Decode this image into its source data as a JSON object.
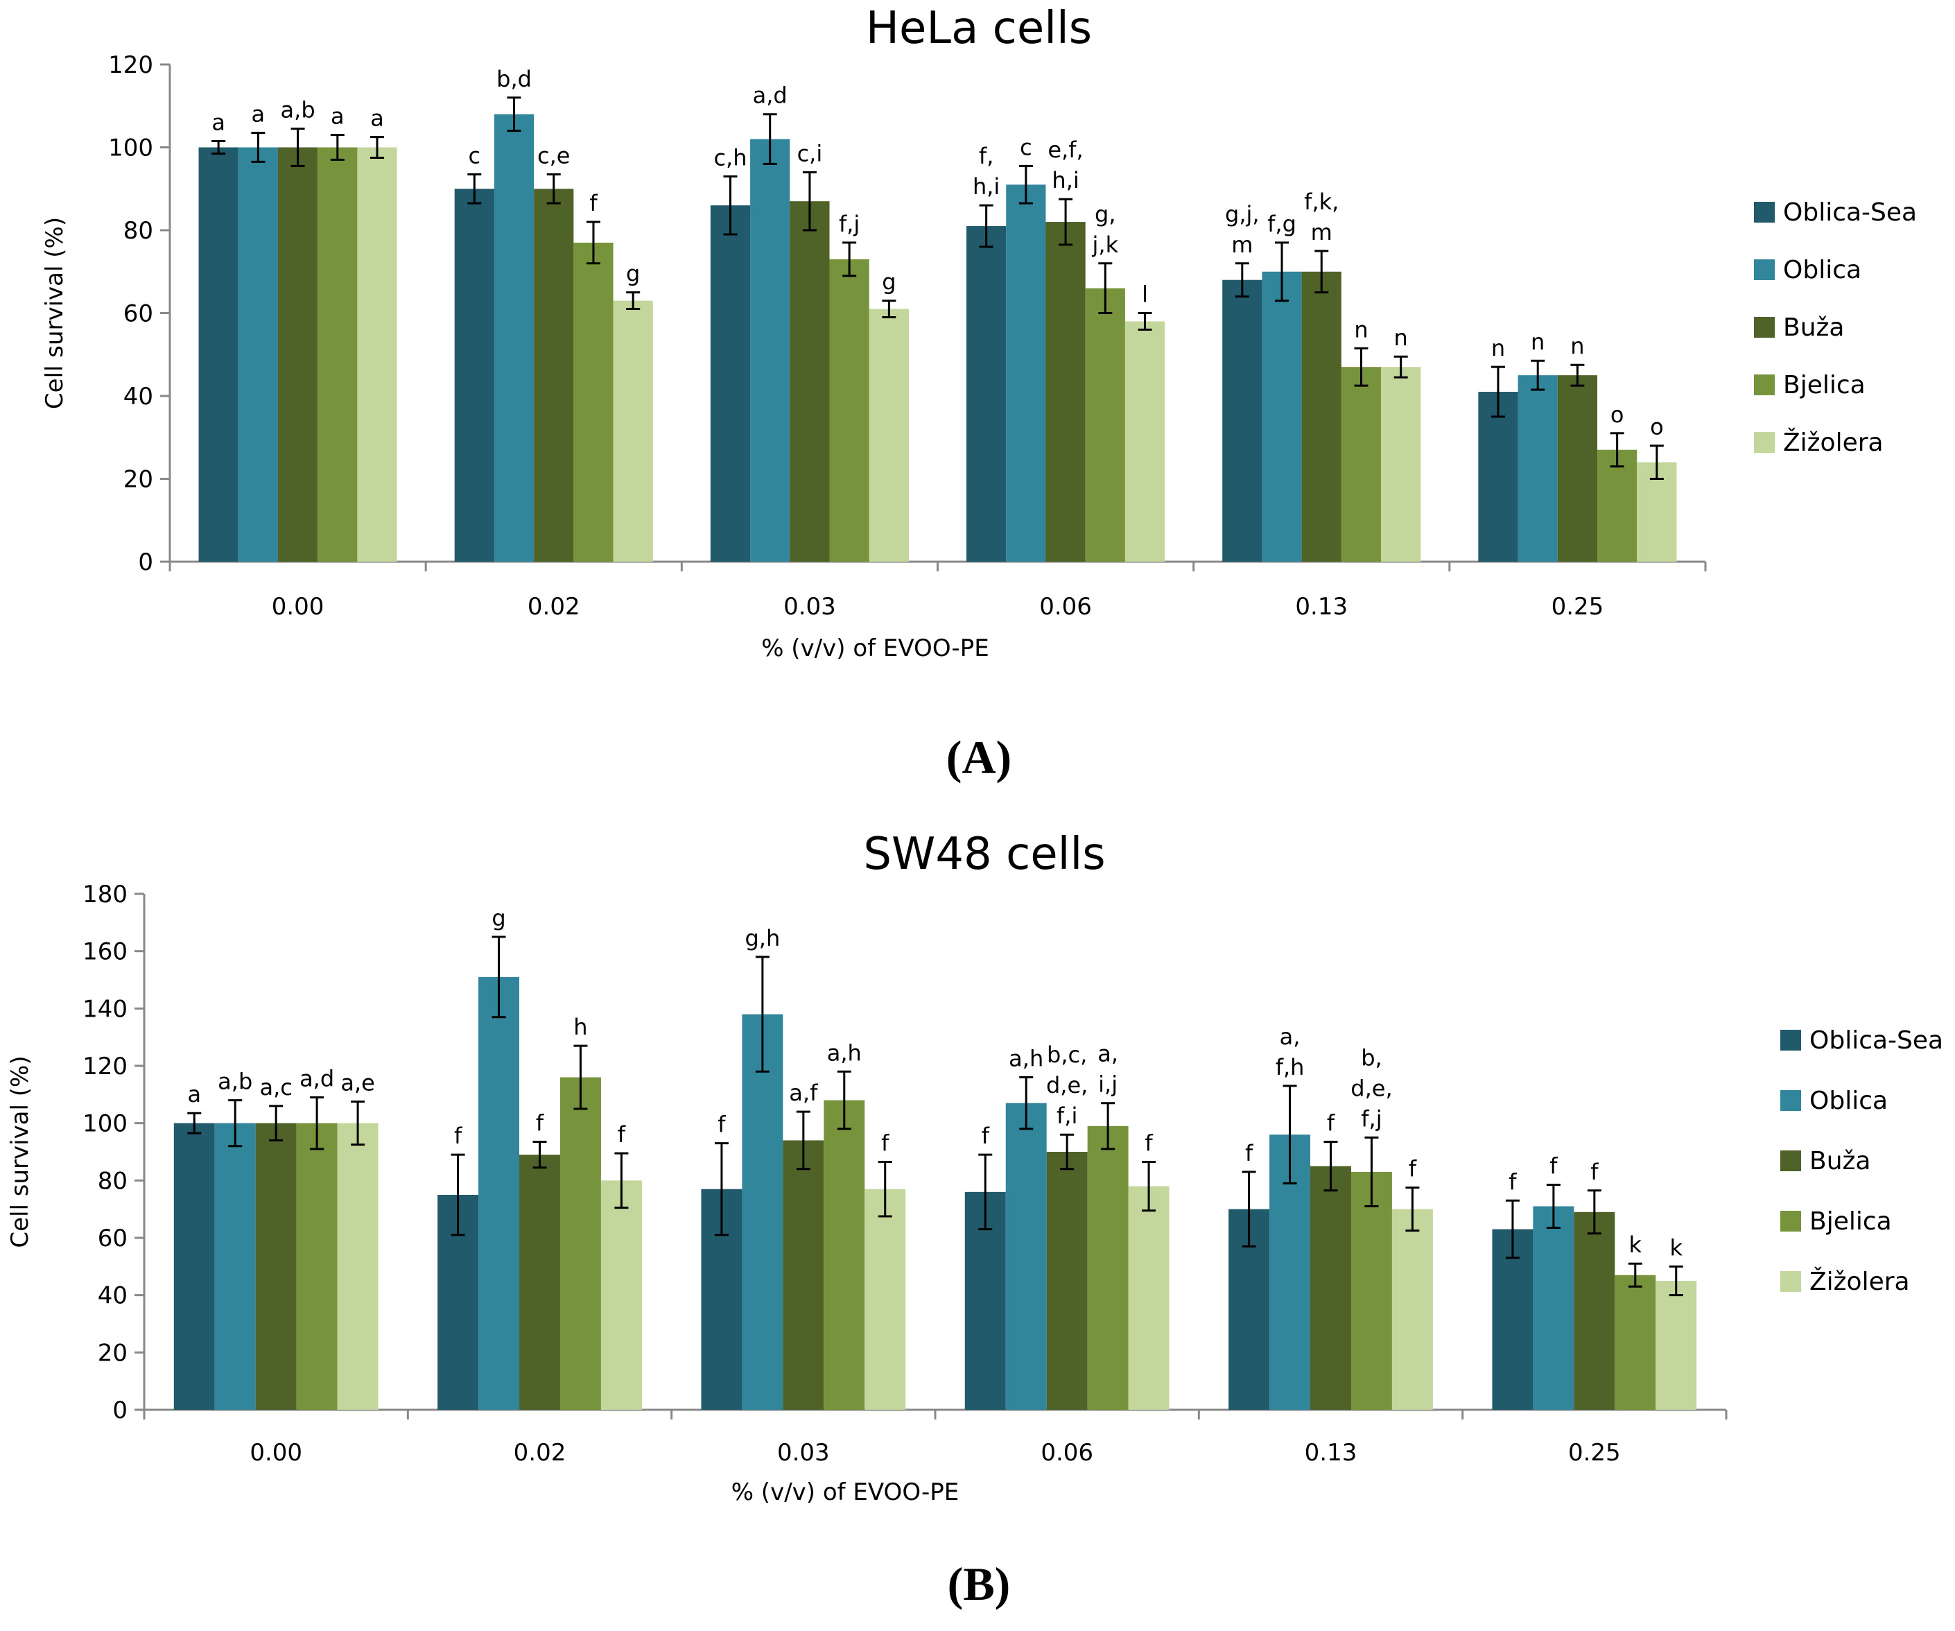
{
  "panels": [
    "A",
    "B"
  ],
  "chart_data": [
    {
      "type": "bar",
      "title": "HeLa cells",
      "panel_label": "(A)",
      "xlabel": "% (v/v) of  EVOO-PE",
      "ylabel": "Cell survival (%)",
      "ylim": [
        0,
        120
      ],
      "yticks": [
        0,
        20,
        40,
        60,
        80,
        100,
        120
      ],
      "categories": [
        "0.00",
        "0.02",
        "0.03",
        "0.06",
        "0.13",
        "0.25"
      ],
      "legend_position": "right",
      "series": [
        {
          "name": "Oblica-Sea",
          "color": "#215a6b",
          "values": [
            100,
            90,
            86,
            81,
            68,
            41
          ],
          "errors": [
            1.5,
            3.5,
            7,
            5,
            4,
            6
          ],
          "labels": [
            [
              "a"
            ],
            [
              "c"
            ],
            [
              "c,h"
            ],
            [
              "f,",
              "h,i"
            ],
            [
              "g,j,",
              "m"
            ],
            [
              "n"
            ]
          ]
        },
        {
          "name": "Oblica",
          "color": "#31869b",
          "values": [
            100,
            108,
            102,
            91,
            70,
            45
          ],
          "errors": [
            3.5,
            4,
            6,
            4.5,
            7,
            3.5
          ],
          "labels": [
            [
              "a"
            ],
            [
              "b,d"
            ],
            [
              "a,d"
            ],
            [
              "c"
            ],
            [
              "f,g"
            ],
            [
              "n"
            ]
          ]
        },
        {
          "name": "Buža",
          "color": "#4f6228",
          "values": [
            100,
            90,
            87,
            82,
            70,
            45
          ],
          "errors": [
            4.5,
            3.5,
            7,
            5.5,
            5,
            2.5
          ],
          "labels": [
            [
              "a,b"
            ],
            [
              "c,e"
            ],
            [
              "c,i"
            ],
            [
              "e,f,",
              "h,i"
            ],
            [
              "f,k,",
              "m"
            ],
            [
              "n"
            ]
          ]
        },
        {
          "name": "Bjelica",
          "color": "#77933c",
          "values": [
            100,
            77,
            73,
            66,
            47,
            27
          ],
          "errors": [
            3,
            5,
            4,
            6,
            4.5,
            4
          ],
          "labels": [
            [
              "a"
            ],
            [
              "f"
            ],
            [
              "f,j"
            ],
            [
              "g,",
              "j,k"
            ],
            [
              "n"
            ],
            [
              "o"
            ]
          ]
        },
        {
          "name": "Žižolera",
          "color": "#c3d69b",
          "values": [
            100,
            63,
            61,
            58,
            47,
            24
          ],
          "errors": [
            2.5,
            2,
            2,
            2,
            2.5,
            4
          ],
          "labels": [
            [
              "a"
            ],
            [
              "g"
            ],
            [
              "g"
            ],
            [
              "l"
            ],
            [
              "n"
            ],
            [
              "o"
            ]
          ]
        }
      ]
    },
    {
      "type": "bar",
      "title": "SW48 cells",
      "panel_label": "(B)",
      "xlabel": "% (v/v) of  EVOO-PE",
      "ylabel": "Cell survival (%)",
      "ylim": [
        0,
        180
      ],
      "yticks": [
        0,
        20,
        40,
        60,
        80,
        100,
        120,
        140,
        160,
        180
      ],
      "categories": [
        "0.00",
        "0.02",
        "0.03",
        "0.06",
        "0.13",
        "0.25"
      ],
      "legend_position": "right",
      "series": [
        {
          "name": "Oblica-Sea",
          "color": "#215a6b",
          "values": [
            100,
            75,
            77,
            76,
            70,
            63
          ],
          "errors": [
            3.5,
            14,
            16,
            13,
            13,
            10
          ],
          "labels": [
            [
              "a"
            ],
            [
              "f"
            ],
            [
              "f"
            ],
            [
              "f"
            ],
            [
              "f"
            ],
            [
              "f"
            ]
          ]
        },
        {
          "name": "Oblica",
          "color": "#31869b",
          "values": [
            100,
            151,
            138,
            107,
            96,
            71
          ],
          "errors": [
            8,
            14,
            20,
            9,
            17,
            7.5
          ],
          "labels": [
            [
              "a,b"
            ],
            [
              "g"
            ],
            [
              "g,h"
            ],
            [
              "a,h"
            ],
            [
              "a,",
              "f,h"
            ],
            [
              "f"
            ]
          ]
        },
        {
          "name": "Buža",
          "color": "#4f6228",
          "values": [
            100,
            89,
            94,
            90,
            85,
            69
          ],
          "errors": [
            6,
            4.5,
            10,
            6,
            8.5,
            7.5
          ],
          "labels": [
            [
              "a,c"
            ],
            [
              "f"
            ],
            [
              "a,f"
            ],
            [
              "b,c,",
              "d,e,",
              "f,i"
            ],
            [
              "f"
            ],
            [
              "f"
            ]
          ]
        },
        {
          "name": "Bjelica",
          "color": "#77933c",
          "values": [
            100,
            116,
            108,
            99,
            83,
            47
          ],
          "errors": [
            9,
            11,
            10,
            8,
            12,
            4
          ],
          "labels": [
            [
              "a,d"
            ],
            [
              "h"
            ],
            [
              "a,h"
            ],
            [
              "a,",
              "i,j"
            ],
            [
              "b,",
              "d,e,",
              "f,j"
            ],
            [
              "k"
            ]
          ]
        },
        {
          "name": "Žižolera",
          "color": "#c3d69b",
          "values": [
            100,
            80,
            77,
            78,
            70,
            45
          ],
          "errors": [
            7.5,
            9.5,
            9.5,
            8.5,
            7.5,
            5
          ],
          "labels": [
            [
              "a,e"
            ],
            [
              "f"
            ],
            [
              "f"
            ],
            [
              "f"
            ],
            [
              "f"
            ],
            [
              "k"
            ]
          ]
        }
      ]
    }
  ]
}
